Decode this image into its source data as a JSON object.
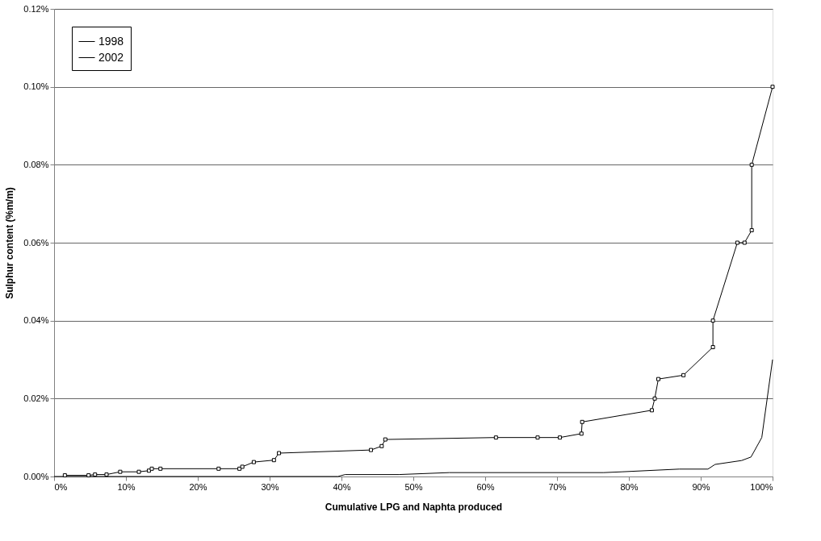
{
  "chart_data": {
    "type": "line",
    "xlabel": "Cumulative LPG and Naphta produced",
    "ylabel": "Sulphur content (%m/m)",
    "xlim": [
      0,
      100
    ],
    "xticks": [
      {
        "value": 0,
        "label": "0%"
      },
      {
        "value": 10,
        "label": "10%"
      },
      {
        "value": 20,
        "label": "20%"
      },
      {
        "value": 30,
        "label": "30%"
      },
      {
        "value": 40,
        "label": "40%"
      },
      {
        "value": 50,
        "label": "50%"
      },
      {
        "value": 60,
        "label": "60%"
      },
      {
        "value": 70,
        "label": "70%"
      },
      {
        "value": 80,
        "label": "80%"
      },
      {
        "value": 90,
        "label": "90%"
      },
      {
        "value": 100,
        "label": "100%"
      }
    ],
    "ylim": [
      0,
      0.12
    ],
    "yticks": [
      {
        "value": 0,
        "label": "0.00%"
      },
      {
        "value": 0.02,
        "label": "0.02%"
      },
      {
        "value": 0.04,
        "label": "0.04%"
      },
      {
        "value": 0.06,
        "label": "0.06%"
      },
      {
        "value": 0.08,
        "label": "0.08%"
      },
      {
        "value": 0.1,
        "label": "0.10%"
      },
      {
        "value": 0.12,
        "label": "0.12%"
      }
    ],
    "grid": "y",
    "legend": "top left",
    "line_style": "solid",
    "series": [
      {
        "name": "1998",
        "color": "#000000",
        "marker": "square",
        "x": [
          1.5,
          4.8,
          5.7,
          7.3,
          9.2,
          11.8,
          13.2,
          13.6,
          14.8,
          22.9,
          25.8,
          26.2,
          27.8,
          30.6,
          31.3,
          44.1,
          45.6,
          46.1,
          61.5,
          67.3,
          70.4,
          73.4,
          73.5,
          83.2,
          83.6,
          84.1,
          87.6,
          91.7,
          91.7,
          95.1,
          96.1,
          97.1,
          97.1,
          100
        ],
        "values": [
          0.0003,
          0.0003,
          0.0005,
          0.0005,
          0.0012,
          0.0012,
          0.0015,
          0.002,
          0.002,
          0.002,
          0.002,
          0.0025,
          0.0037,
          0.0042,
          0.006,
          0.0068,
          0.0078,
          0.0095,
          0.01,
          0.01,
          0.01,
          0.011,
          0.014,
          0.017,
          0.02,
          0.025,
          0.026,
          0.0332,
          0.04,
          0.06,
          0.06,
          0.0632,
          0.08,
          0.1
        ]
      },
      {
        "name": "2002",
        "color": "#000000",
        "marker": "none",
        "x": [
          0,
          39.5,
          40.5,
          48,
          55,
          76.5,
          79,
          87,
          91,
          92,
          95.7,
          97,
          98.5,
          100
        ],
        "values": [
          0,
          0,
          0.0005,
          0.0005,
          0.001,
          0.001,
          0.0012,
          0.0019,
          0.0019,
          0.0031,
          0.0041,
          0.005,
          0.01,
          0.03
        ]
      }
    ]
  }
}
